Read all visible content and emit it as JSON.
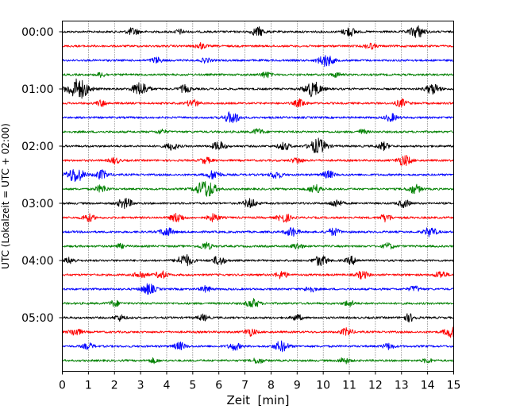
{
  "chart_data": {
    "type": "line",
    "xlabel": "Zeit  [min]",
    "ylabel": "UTC (Lokalzeit = UTC + 02:00)",
    "xlim": [
      0,
      15
    ],
    "x_ticks": [
      0,
      1,
      2,
      3,
      4,
      5,
      6,
      7,
      8,
      9,
      10,
      11,
      12,
      13,
      14,
      15
    ],
    "y_tick_labels": [
      "00:00",
      "01:00",
      "02:00",
      "03:00",
      "04:00",
      "05:00"
    ],
    "grid": "vertical dotted",
    "row_colors": [
      "#000000",
      "#ff0000",
      "#0000ff",
      "#008000"
    ],
    "traces": [
      {
        "start": "00:00",
        "bursts": [
          [
            2.7,
            0.5
          ],
          [
            4.5,
            0.3
          ],
          [
            7.5,
            0.6
          ],
          [
            11,
            0.6
          ],
          [
            13.6,
            0.8
          ]
        ]
      },
      {
        "start": "00:15",
        "bursts": [
          [
            5.3,
            0.4
          ],
          [
            11.8,
            0.4
          ]
        ]
      },
      {
        "start": "00:30",
        "bursts": [
          [
            3.6,
            0.4
          ],
          [
            5.5,
            0.3
          ],
          [
            10.1,
            0.8
          ]
        ]
      },
      {
        "start": "00:45",
        "bursts": [
          [
            1.5,
            0.3
          ],
          [
            7.8,
            0.4
          ],
          [
            10.5,
            0.3
          ]
        ]
      },
      {
        "start": "01:00",
        "bursts": [
          [
            0.6,
            1.4
          ],
          [
            3,
            0.9
          ],
          [
            4.7,
            0.5
          ],
          [
            9.6,
            1.0
          ],
          [
            14.2,
            0.7
          ]
        ]
      },
      {
        "start": "01:15",
        "bursts": [
          [
            1.5,
            0.4
          ],
          [
            5,
            0.5
          ],
          [
            9.1,
            0.5
          ],
          [
            13,
            0.5
          ]
        ]
      },
      {
        "start": "01:30",
        "bursts": [
          [
            6.5,
            0.8
          ],
          [
            12.6,
            0.5
          ]
        ]
      },
      {
        "start": "01:45",
        "bursts": [
          [
            3.8,
            0.3
          ],
          [
            7.5,
            0.4
          ],
          [
            11.5,
            0.3
          ]
        ]
      },
      {
        "start": "02:00",
        "bursts": [
          [
            4.2,
            0.5
          ],
          [
            6,
            0.6
          ],
          [
            8.5,
            0.5
          ],
          [
            9.8,
            1.0
          ],
          [
            12.3,
            0.5
          ]
        ]
      },
      {
        "start": "02:15",
        "bursts": [
          [
            2,
            0.4
          ],
          [
            5.5,
            0.4
          ],
          [
            9,
            0.4
          ],
          [
            13.1,
            0.7
          ]
        ]
      },
      {
        "start": "02:30",
        "bursts": [
          [
            0.5,
            1.0
          ],
          [
            1.5,
            0.6
          ],
          [
            5.8,
            0.6
          ],
          [
            8.2,
            0.5
          ],
          [
            10.2,
            0.5
          ]
        ]
      },
      {
        "start": "02:45",
        "bursts": [
          [
            1.5,
            0.5
          ],
          [
            5.5,
            1.2
          ],
          [
            9.7,
            0.6
          ],
          [
            13.5,
            0.6
          ]
        ]
      },
      {
        "start": "03:00",
        "bursts": [
          [
            2.4,
            0.7
          ],
          [
            7.2,
            0.6
          ],
          [
            10.5,
            0.5
          ],
          [
            13.1,
            0.5
          ]
        ]
      },
      {
        "start": "03:15",
        "bursts": [
          [
            1,
            0.5
          ],
          [
            4.4,
            0.6
          ],
          [
            5.8,
            0.5
          ],
          [
            8.5,
            0.6
          ],
          [
            12.4,
            0.5
          ]
        ]
      },
      {
        "start": "03:30",
        "bursts": [
          [
            4,
            0.6
          ],
          [
            8.8,
            0.6
          ],
          [
            10.4,
            0.5
          ],
          [
            14.1,
            0.6
          ]
        ]
      },
      {
        "start": "03:45",
        "bursts": [
          [
            2.2,
            0.3
          ],
          [
            5.5,
            0.5
          ],
          [
            9,
            0.4
          ],
          [
            12.5,
            0.4
          ]
        ]
      },
      {
        "start": "04:00",
        "bursts": [
          [
            0.3,
            0.4
          ],
          [
            4.7,
            0.8
          ],
          [
            6,
            0.6
          ],
          [
            9.9,
            0.7
          ],
          [
            11.1,
            0.5
          ]
        ]
      },
      {
        "start": "04:15",
        "bursts": [
          [
            3,
            0.5
          ],
          [
            3.8,
            0.5
          ],
          [
            8.4,
            0.5
          ],
          [
            11.5,
            0.5
          ],
          [
            14.5,
            0.5
          ]
        ]
      },
      {
        "start": "04:30",
        "bursts": [
          [
            3.3,
            0.7
          ],
          [
            5.5,
            0.4
          ],
          [
            9.5,
            0.4
          ],
          [
            13.5,
            0.4
          ]
        ]
      },
      {
        "start": "04:45",
        "bursts": [
          [
            2,
            0.4
          ],
          [
            7.3,
            0.6
          ],
          [
            11,
            0.4
          ]
        ]
      },
      {
        "start": "05:00",
        "bursts": [
          [
            2.2,
            0.4
          ],
          [
            5.4,
            0.4
          ],
          [
            9,
            0.4
          ],
          [
            13.3,
            0.5
          ]
        ]
      },
      {
        "start": "05:15",
        "bursts": [
          [
            0.5,
            0.5
          ],
          [
            7.2,
            0.5
          ],
          [
            10.9,
            0.5
          ],
          [
            14.9,
            0.7
          ]
        ]
      },
      {
        "start": "05:30",
        "bursts": [
          [
            1,
            0.4
          ],
          [
            4.5,
            0.5
          ],
          [
            6.6,
            0.5
          ],
          [
            8.4,
            0.7
          ],
          [
            12.5,
            0.4
          ]
        ]
      },
      {
        "start": "05:45",
        "bursts": [
          [
            3.5,
            0.3
          ],
          [
            7.5,
            0.4
          ],
          [
            10.8,
            0.4
          ],
          [
            14,
            0.3
          ]
        ]
      }
    ]
  }
}
